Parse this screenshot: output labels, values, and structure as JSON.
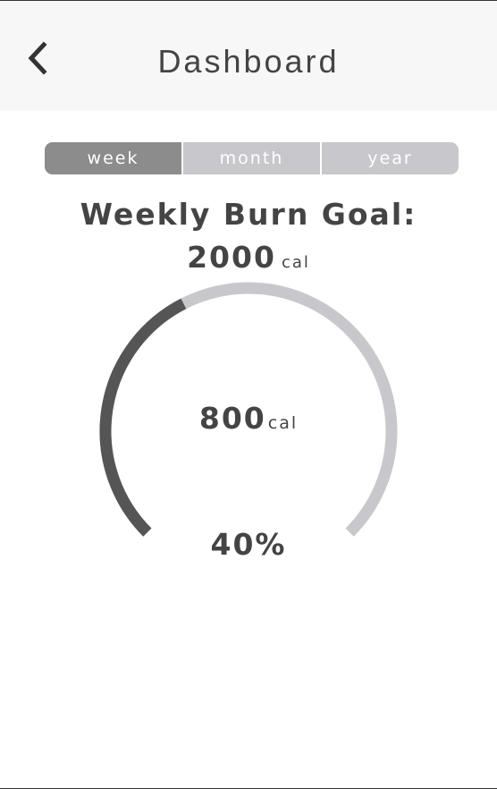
{
  "header": {
    "title": "Dashboard",
    "back_icon": "chevron-left-icon"
  },
  "period_tabs": [
    {
      "label": "week",
      "active": true
    },
    {
      "label": "month",
      "active": false
    },
    {
      "label": "year",
      "active": false
    }
  ],
  "goal": {
    "label": "Weekly Burn Goal:",
    "value": "2000",
    "unit": "cal"
  },
  "progress": {
    "burned": "800",
    "unit": "cal",
    "percent_label": "40%",
    "fraction": 0.4
  },
  "colors": {
    "header_bg": "#f7f7f7",
    "text": "#444444",
    "active_tab": "#8c8c8c",
    "inactive_tab": "#c8c8cc",
    "gauge_fill": "#555555",
    "gauge_track": "#c8c8cc"
  }
}
